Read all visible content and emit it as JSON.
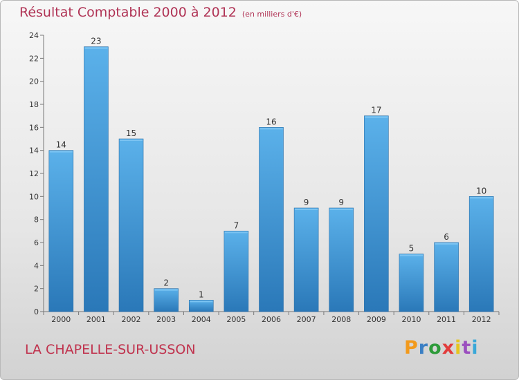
{
  "header": {
    "title": "Résultat Comptable 2000 à 2012",
    "unit": "(en milliers d'€)"
  },
  "footer": {
    "town": "LA CHAPELLE-SUR-USSON",
    "logo": "Proxiti",
    "logo_colors": [
      "#f29a1c",
      "#3a7fc4",
      "#2e9b3a",
      "#e23c3c",
      "#e6c51e",
      "#9b4fbf",
      "#3aa8d8"
    ]
  },
  "chart_data": {
    "type": "bar",
    "title": "Résultat Comptable 2000 à 2012",
    "subtitle": "(en milliers d'€)",
    "categories": [
      "2000",
      "2001",
      "2002",
      "2003",
      "2004",
      "2005",
      "2006",
      "2007",
      "2008",
      "2009",
      "2010",
      "2011",
      "2012"
    ],
    "values": [
      14,
      23,
      15,
      2,
      1,
      7,
      16,
      9,
      9,
      17,
      5,
      6,
      10
    ],
    "ylim": [
      0,
      24
    ],
    "yticks": [
      0,
      2,
      4,
      6,
      8,
      10,
      12,
      14,
      16,
      18,
      20,
      22,
      24
    ],
    "grid": false,
    "bar_color": "#3a93d6",
    "bar_color_light": "#5bb1ea",
    "bar_color_dark": "#2a78b8"
  }
}
